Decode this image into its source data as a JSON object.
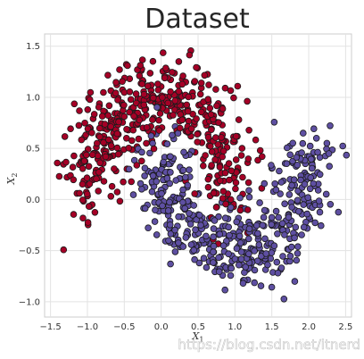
{
  "chart_data": {
    "type": "scatter",
    "title": "Dataset",
    "xlabel": "X",
    "xlabel_sub": "1",
    "ylabel": "X",
    "ylabel_sub": "2",
    "xlim": [
      -1.58,
      2.58
    ],
    "ylim": [
      -1.15,
      1.62
    ],
    "xticks": [
      -1.5,
      -1.0,
      -0.5,
      0.0,
      0.5,
      1.0,
      1.5,
      2.0,
      2.5
    ],
    "xtick_labels": [
      "−1.5",
      "−1.0",
      "−0.5",
      "0.0",
      "0.5",
      "1.0",
      "1.5",
      "2.0",
      "2.5"
    ],
    "yticks": [
      -1.0,
      -0.5,
      0.0,
      0.5,
      1.0,
      1.5
    ],
    "ytick_labels": [
      "−1.0",
      "−0.5",
      "0.0",
      "0.5",
      "1.0",
      "1.5"
    ],
    "grid": true,
    "dataset_shape": "two interleaving half-moons, 1000 points",
    "series": [
      {
        "class": 0,
        "color": "#a50026",
        "edge_color": "#1a1a1a",
        "description": "upper moon: arc centered at (0, 0), radius ~1, from x=-1.3 to x=1.0",
        "sample_points": [
          [
            -1.2,
            1.1
          ],
          [
            -1.1,
            0.6
          ],
          [
            -1.0,
            0.3
          ],
          [
            -0.9,
            0.0
          ],
          [
            -0.7,
            1.3
          ],
          [
            -0.6,
            1.2
          ],
          [
            -0.5,
            0.9
          ],
          [
            -0.3,
            1.5
          ],
          [
            0.0,
            1.0
          ],
          [
            0.3,
            1.2
          ],
          [
            0.5,
            0.9
          ],
          [
            0.7,
            0.6
          ],
          [
            0.9,
            0.4
          ],
          [
            1.0,
            0.1
          ],
          [
            0.8,
            -0.1
          ],
          [
            -1.4,
            0.3
          ],
          [
            -0.8,
            -0.3
          ],
          [
            -0.2,
            0.1
          ]
        ]
      },
      {
        "class": 1,
        "color": "#5e4fa2",
        "edge_color": "#1a1a1a",
        "description": "lower moon: arc centered at (1, 0.5), radius ~1, from x=0 to x=2.4",
        "sample_points": [
          [
            0.0,
            0.3
          ],
          [
            0.1,
            -0.2
          ],
          [
            0.3,
            -0.4
          ],
          [
            0.5,
            -0.6
          ],
          [
            0.8,
            -0.7
          ],
          [
            1.0,
            -1.02
          ],
          [
            1.2,
            -0.5
          ],
          [
            1.5,
            -0.3
          ],
          [
            1.8,
            0.0
          ],
          [
            2.0,
            0.5
          ],
          [
            2.2,
            0.2
          ],
          [
            2.4,
            0.3
          ],
          [
            1.6,
            0.9
          ],
          [
            0.6,
            0.6
          ],
          [
            -0.4,
            0.5
          ],
          [
            1.4,
            -0.9
          ],
          [
            2.3,
            -0.1
          ],
          [
            0.2,
            0.1
          ]
        ]
      }
    ],
    "watermark": "https://blog.csdn.net/itnerd"
  }
}
